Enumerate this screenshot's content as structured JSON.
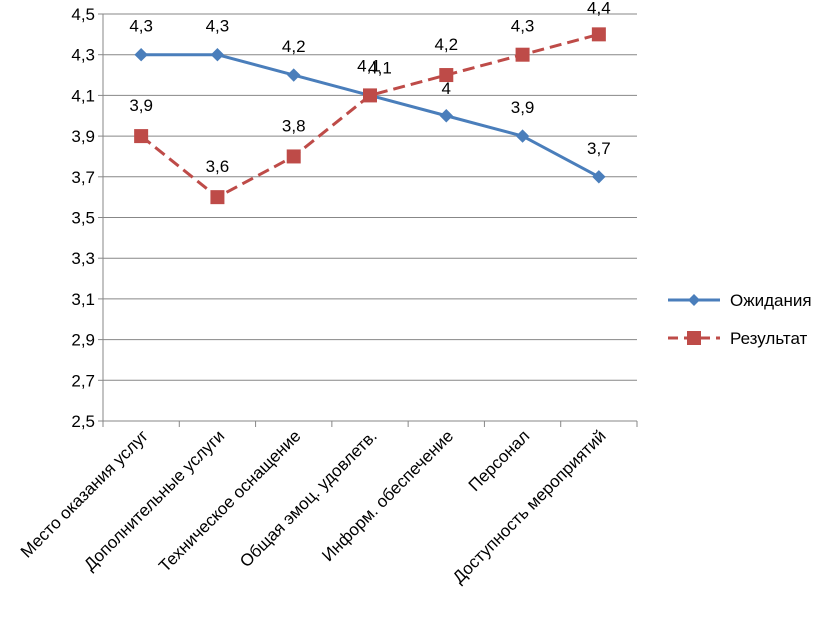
{
  "chart_data": {
    "type": "line",
    "categories": [
      "Место оказания услуг",
      "Дополнительные услуги",
      "Техническое оснащение",
      "Общая эмоц. удовлетв.",
      "Информ. обеспечение",
      "Персонал",
      "Доступность мероприятий"
    ],
    "series": [
      {
        "name": "Ожидания",
        "values": [
          4.3,
          4.3,
          4.2,
          4.1,
          4.0,
          3.9,
          3.7
        ],
        "labels": [
          "4,3",
          "4,3",
          "4,2",
          "4,1",
          "4",
          "3,9",
          "3,7"
        ],
        "color": "#4a7ebb",
        "marker": "diamond",
        "line_style": "solid"
      },
      {
        "name": "Результат",
        "values": [
          3.9,
          3.6,
          3.8,
          4.1,
          4.2,
          4.3,
          4.4
        ],
        "labels": [
          "3,9",
          "3,6",
          "3,8",
          "4,1",
          "4,2",
          "4,3",
          "4,4"
        ],
        "color": "#be4b48",
        "marker": "square",
        "line_style": "dashed"
      }
    ],
    "ylim": [
      2.5,
      4.5
    ],
    "yticks": [
      "2,5",
      "2,7",
      "2,9",
      "3,1",
      "3,3",
      "3,5",
      "3,7",
      "3,9",
      "4,1",
      "4,3",
      "4,5"
    ],
    "grid": true,
    "legend_position": "right",
    "title": "",
    "xlabel": "",
    "ylabel": ""
  }
}
